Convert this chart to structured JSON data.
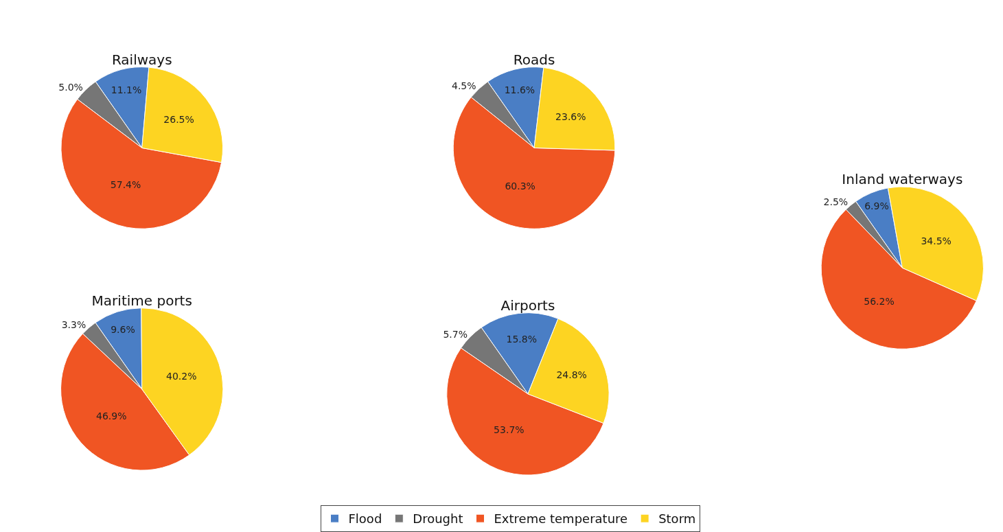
{
  "chart_data": [
    {
      "type": "pie",
      "title": "Railways",
      "categories": [
        "Flood",
        "Drought",
        "Extreme temperature",
        "Storm"
      ],
      "values": [
        11.1,
        5.0,
        57.4,
        26.5
      ],
      "value_labels": [
        "11.1%",
        "5.0%",
        "57.4%",
        "26.5%"
      ],
      "colors": [
        "#4a7ec5",
        "#767676",
        "#f05523",
        "#fdd422"
      ],
      "legend": "bottom"
    },
    {
      "type": "pie",
      "title": "Roads",
      "categories": [
        null,
        null,
        null,
        null
      ],
      "values": [
        11.6,
        4.5,
        60.3,
        23.6
      ],
      "value_labels": [
        "11.6%",
        "4.5%",
        "60.3%",
        "23.6%"
      ],
      "colors": [
        "#4a7ec5",
        "#767676",
        "#f05523",
        "#fdd422"
      ]
    },
    {
      "type": "pie",
      "title": "Inland waterways",
      "categories": [
        null,
        null,
        null,
        null
      ],
      "values": [
        6.9,
        2.5,
        56.2,
        34.5
      ],
      "value_labels": [
        "6.9%",
        "2.5%",
        "56.2%",
        "34.5%"
      ],
      "colors": [
        "#4a7ec5",
        "#767676",
        "#f05523",
        "#fdd422"
      ]
    },
    {
      "type": "pie",
      "title": "Maritime ports",
      "categories": [
        null,
        null,
        null,
        null
      ],
      "values": [
        9.6,
        3.3,
        46.9,
        40.2
      ],
      "value_labels": [
        "9.6%",
        "3.3%",
        "46.9%",
        "40.2%"
      ],
      "colors": [
        "#4a7ec5",
        "#767676",
        "#f05523",
        "#fdd422"
      ]
    },
    {
      "type": "pie",
      "title": "Airports",
      "categories": [
        null,
        null,
        null,
        null
      ],
      "values": [
        15.8,
        5.7,
        53.7,
        24.8
      ],
      "value_labels": [
        "15.8%",
        "5.7%",
        "53.7%",
        "24.8%"
      ],
      "colors": [
        "#4a7ec5",
        "#767676",
        "#f05523",
        "#fdd422"
      ]
    }
  ]
}
